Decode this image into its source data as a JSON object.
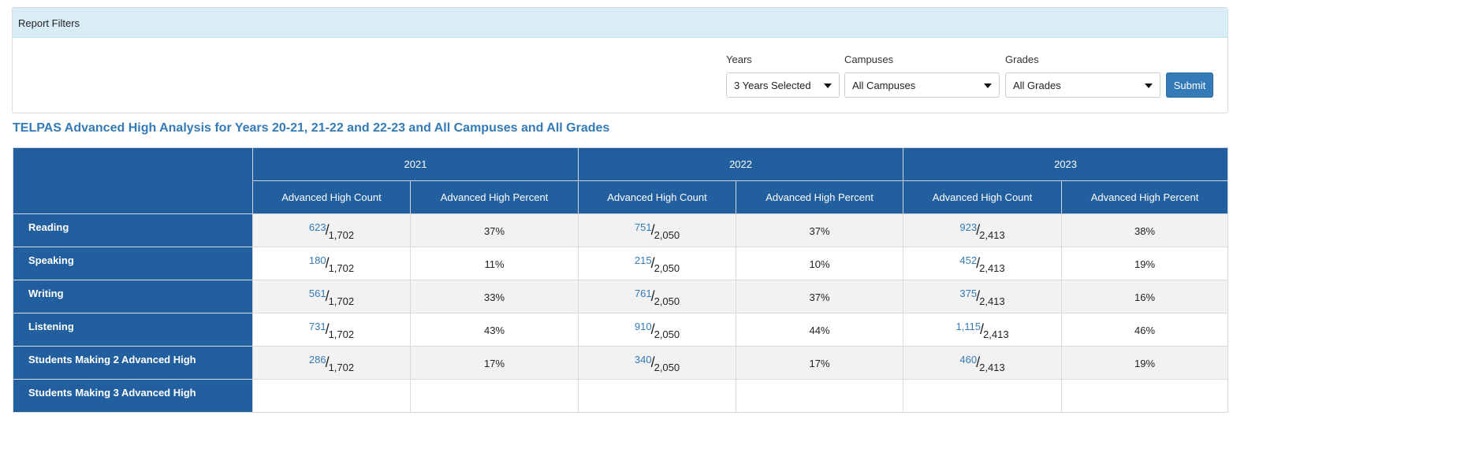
{
  "filters": {
    "title": "Report Filters",
    "years": {
      "label": "Years",
      "value": "3 Years Selected"
    },
    "campuses": {
      "label": "Campuses",
      "value": "All Campuses"
    },
    "grades": {
      "label": "Grades",
      "value": "All Grades"
    },
    "submit": "Submit"
  },
  "report": {
    "title": "TELPAS Advanced High Analysis for Years 20-21, 21-22 and 22-23 and All Campuses and All Grades",
    "years": [
      "2021",
      "2022",
      "2023"
    ],
    "col_count": "Advanced High Count",
    "col_percent": "Advanced High Percent",
    "rows": [
      {
        "label": "Reading",
        "cells": [
          {
            "n": "623",
            "d": "1,702",
            "p": "37%"
          },
          {
            "n": "751",
            "d": "2,050",
            "p": "37%"
          },
          {
            "n": "923",
            "d": "2,413",
            "p": "38%"
          }
        ]
      },
      {
        "label": "Speaking",
        "cells": [
          {
            "n": "180",
            "d": "1,702",
            "p": "11%"
          },
          {
            "n": "215",
            "d": "2,050",
            "p": "10%"
          },
          {
            "n": "452",
            "d": "2,413",
            "p": "19%"
          }
        ]
      },
      {
        "label": "Writing",
        "cells": [
          {
            "n": "561",
            "d": "1,702",
            "p": "33%"
          },
          {
            "n": "761",
            "d": "2,050",
            "p": "37%"
          },
          {
            "n": "375",
            "d": "2,413",
            "p": "16%"
          }
        ]
      },
      {
        "label": "Listening",
        "cells": [
          {
            "n": "731",
            "d": "1,702",
            "p": "43%"
          },
          {
            "n": "910",
            "d": "2,050",
            "p": "44%"
          },
          {
            "n": "1,115",
            "d": "2,413",
            "p": "46%"
          }
        ]
      },
      {
        "label": "Students Making 2 Advanced High",
        "cells": [
          {
            "n": "286",
            "d": "1,702",
            "p": "17%"
          },
          {
            "n": "340",
            "d": "2,050",
            "p": "17%"
          },
          {
            "n": "460",
            "d": "2,413",
            "p": "19%"
          }
        ]
      },
      {
        "label": "Students Making 3 Advanced High",
        "cells": [
          {
            "n": "",
            "d": "",
            "p": ""
          },
          {
            "n": "",
            "d": "",
            "p": ""
          },
          {
            "n": "",
            "d": "",
            "p": ""
          }
        ]
      }
    ]
  },
  "colors": {
    "header_bg": "#215f9e",
    "accent": "#337ab7",
    "filter_head": "#d9edf7"
  }
}
